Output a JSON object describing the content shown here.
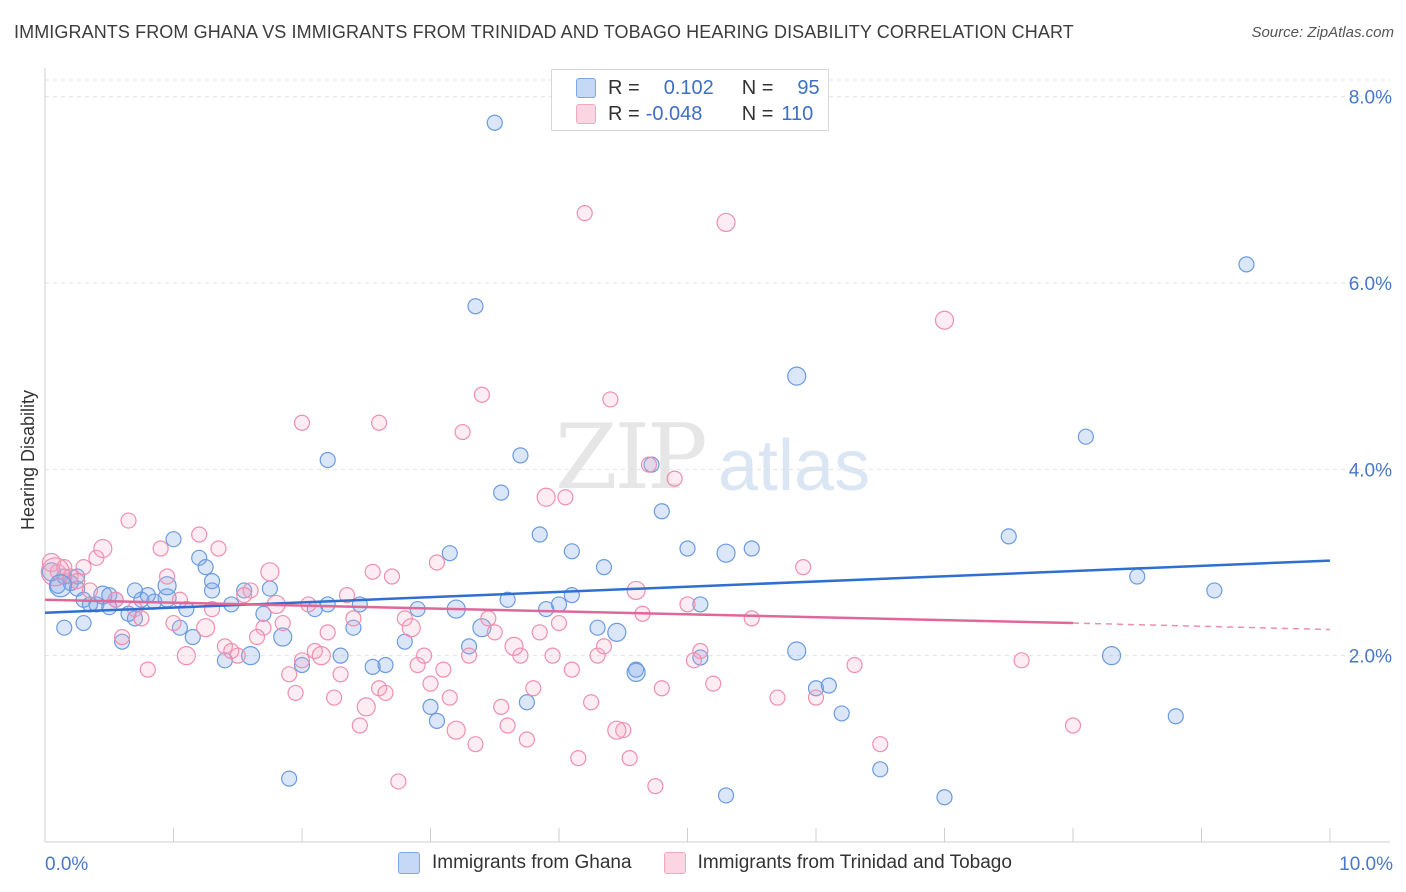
{
  "title": "IMMIGRANTS FROM GHANA VS IMMIGRANTS FROM TRINIDAD AND TOBAGO HEARING DISABILITY CORRELATION CHART",
  "source": "Source: ZipAtlas.com",
  "watermark": {
    "zip": "ZIP",
    "atlas": "atlas"
  },
  "legend": {
    "rows": [
      {
        "r_label": "R =",
        "r_value": "0.102",
        "n_label": "N =",
        "n_value": "95",
        "color": "#7da7e8"
      },
      {
        "r_label": "R =",
        "r_value": "-0.048",
        "n_label": "N =",
        "n_value": "110",
        "color": "#f4a7c0"
      }
    ]
  },
  "bottom_legend": {
    "ghana": "Immigrants from Ghana",
    "trinidad": "Immigrants from Trinidad and Tobago"
  },
  "chart_data": {
    "type": "scatter",
    "ylabel": "Hearing Disability",
    "x_tick_labels": [
      "0.0%",
      "10.0%"
    ],
    "y_tick_labels": [
      "2.0%",
      "4.0%",
      "6.0%",
      "8.0%"
    ],
    "y_ticks": [
      2,
      4,
      6,
      8
    ],
    "xlim": [
      0,
      10
    ],
    "ylim": [
      0,
      8.2
    ],
    "grid": true,
    "series": [
      {
        "name": "Immigrants from Ghana",
        "color": "#6b9be0",
        "trend": {
          "x0": 0,
          "y0": 2.46,
          "x1": 10,
          "y1": 3.02
        },
        "points": [
          [
            0.05,
            2.9
          ],
          [
            0.1,
            2.75
          ],
          [
            0.15,
            2.85
          ],
          [
            0.2,
            2.78
          ],
          [
            0.25,
            2.72
          ],
          [
            0.3,
            2.6
          ],
          [
            0.35,
            2.55
          ],
          [
            0.45,
            2.65
          ],
          [
            0.5,
            2.52
          ],
          [
            0.55,
            2.6
          ],
          [
            0.65,
            2.45
          ],
          [
            0.7,
            2.4
          ],
          [
            0.75,
            2.6
          ],
          [
            0.85,
            2.58
          ],
          [
            0.95,
            2.62
          ],
          [
            1.1,
            2.5
          ],
          [
            1.2,
            3.05
          ],
          [
            1.3,
            2.8
          ],
          [
            1.45,
            2.55
          ],
          [
            1.55,
            2.7
          ],
          [
            1.7,
            2.45
          ],
          [
            1.85,
            2.2
          ],
          [
            2.0,
            1.9
          ],
          [
            2.2,
            2.55
          ],
          [
            2.4,
            2.3
          ],
          [
            2.55,
            1.88
          ],
          [
            2.8,
            2.15
          ],
          [
            3.0,
            1.45
          ],
          [
            3.2,
            2.5
          ],
          [
            3.35,
            5.75
          ],
          [
            3.55,
            3.75
          ],
          [
            3.7,
            4.15
          ],
          [
            3.85,
            3.3
          ],
          [
            4.1,
            2.65
          ],
          [
            4.3,
            2.3
          ],
          [
            4.45,
            2.25
          ],
          [
            4.6,
            1.85
          ],
          [
            4.8,
            3.55
          ],
          [
            5.0,
            3.15
          ],
          [
            5.1,
            1.98
          ],
          [
            5.3,
            0.5
          ],
          [
            5.5,
            3.15
          ],
          [
            5.85,
            2.05
          ],
          [
            6.0,
            1.65
          ],
          [
            6.2,
            1.38
          ],
          [
            6.5,
            0.78
          ],
          [
            7.0,
            0.48
          ],
          [
            7.5,
            3.28
          ],
          [
            8.1,
            4.35
          ],
          [
            8.3,
            2.0
          ],
          [
            8.5,
            2.85
          ],
          [
            8.8,
            1.35
          ],
          [
            9.1,
            2.7
          ],
          [
            9.35,
            6.2
          ],
          [
            3.5,
            7.72
          ],
          [
            4.72,
            4.05
          ],
          [
            5.85,
            5.0
          ],
          [
            2.2,
            4.1
          ],
          [
            1.9,
            0.68
          ],
          [
            3.15,
            3.1
          ],
          [
            0.3,
            2.35
          ],
          [
            0.6,
            2.15
          ],
          [
            1.0,
            3.25
          ],
          [
            1.6,
            2.0
          ],
          [
            2.1,
            2.5
          ],
          [
            2.65,
            1.9
          ],
          [
            3.05,
            1.3
          ],
          [
            3.3,
            2.1
          ],
          [
            3.9,
            2.5
          ],
          [
            4.1,
            3.12
          ],
          [
            4.6,
            1.82
          ],
          [
            5.1,
            2.55
          ],
          [
            1.3,
            2.7
          ],
          [
            0.8,
            2.65
          ],
          [
            1.05,
            2.3
          ],
          [
            2.3,
            2.0
          ],
          [
            1.4,
            1.95
          ],
          [
            0.95,
            2.75
          ],
          [
            3.6,
            2.6
          ],
          [
            4.35,
            2.95
          ],
          [
            0.15,
            2.3
          ],
          [
            1.75,
            2.72
          ],
          [
            2.45,
            2.55
          ],
          [
            3.75,
            1.5
          ],
          [
            5.3,
            3.1
          ],
          [
            6.1,
            1.68
          ],
          [
            0.4,
            2.55
          ],
          [
            1.25,
            2.95
          ],
          [
            0.7,
            2.7
          ],
          [
            1.15,
            2.2
          ],
          [
            2.9,
            2.5
          ],
          [
            3.4,
            2.3
          ],
          [
            4.0,
            2.55
          ],
          [
            0.5,
            2.65
          ],
          [
            0.25,
            2.85
          ]
        ]
      },
      {
        "name": "Immigrants from Trinidad and Tobago",
        "color": "#ee8fb0",
        "trend": {
          "x0": 0,
          "y0": 2.6,
          "x1": 8.0,
          "y1": 2.35
        },
        "trend_dashed": {
          "x0": 8.0,
          "y0": 2.35,
          "x1": 10,
          "y1": 2.28
        },
        "points": [
          [
            0.05,
            3.0
          ],
          [
            0.1,
            2.9
          ],
          [
            0.15,
            2.95
          ],
          [
            0.2,
            2.85
          ],
          [
            0.25,
            2.8
          ],
          [
            0.3,
            2.95
          ],
          [
            0.4,
            3.05
          ],
          [
            0.45,
            3.15
          ],
          [
            0.55,
            2.6
          ],
          [
            0.6,
            2.2
          ],
          [
            0.7,
            2.5
          ],
          [
            0.8,
            1.85
          ],
          [
            0.9,
            3.15
          ],
          [
            1.0,
            2.35
          ],
          [
            1.1,
            2.0
          ],
          [
            1.2,
            3.3
          ],
          [
            1.3,
            2.5
          ],
          [
            1.4,
            2.1
          ],
          [
            1.5,
            2.0
          ],
          [
            1.6,
            2.7
          ],
          [
            1.7,
            2.3
          ],
          [
            1.8,
            2.55
          ],
          [
            1.9,
            1.8
          ],
          [
            2.0,
            1.95
          ],
          [
            2.1,
            2.05
          ],
          [
            2.2,
            2.25
          ],
          [
            2.3,
            1.8
          ],
          [
            2.4,
            2.4
          ],
          [
            2.5,
            1.45
          ],
          [
            2.6,
            1.65
          ],
          [
            2.7,
            2.85
          ],
          [
            2.8,
            2.4
          ],
          [
            2.9,
            1.9
          ],
          [
            3.0,
            1.7
          ],
          [
            3.1,
            1.85
          ],
          [
            3.2,
            1.2
          ],
          [
            3.3,
            2.0
          ],
          [
            3.4,
            4.8
          ],
          [
            3.5,
            2.25
          ],
          [
            3.6,
            1.25
          ],
          [
            3.7,
            2.0
          ],
          [
            3.8,
            1.65
          ],
          [
            3.9,
            3.7
          ],
          [
            4.0,
            2.35
          ],
          [
            4.1,
            1.85
          ],
          [
            4.2,
            6.75
          ],
          [
            4.3,
            2.0
          ],
          [
            4.4,
            4.75
          ],
          [
            4.5,
            1.2
          ],
          [
            4.6,
            2.7
          ],
          [
            4.7,
            4.05
          ],
          [
            4.8,
            1.65
          ],
          [
            4.9,
            3.9
          ],
          [
            5.0,
            2.55
          ],
          [
            5.1,
            2.05
          ],
          [
            5.2,
            1.7
          ],
          [
            5.3,
            6.65
          ],
          [
            5.5,
            2.4
          ],
          [
            5.7,
            1.55
          ],
          [
            5.9,
            2.95
          ],
          [
            6.0,
            1.55
          ],
          [
            6.3,
            1.9
          ],
          [
            6.5,
            1.05
          ],
          [
            7.0,
            5.6
          ],
          [
            7.6,
            1.95
          ],
          [
            8.0,
            1.25
          ],
          [
            2.0,
            4.5
          ],
          [
            2.6,
            4.5
          ],
          [
            3.25,
            4.4
          ],
          [
            4.05,
            3.7
          ],
          [
            1.75,
            2.9
          ],
          [
            0.65,
            3.45
          ],
          [
            1.35,
            3.15
          ],
          [
            0.35,
            2.7
          ],
          [
            0.75,
            2.4
          ],
          [
            0.95,
            2.85
          ],
          [
            1.05,
            2.6
          ],
          [
            1.25,
            2.3
          ],
          [
            1.45,
            2.05
          ],
          [
            1.55,
            2.65
          ],
          [
            1.65,
            2.2
          ],
          [
            1.85,
            2.35
          ],
          [
            1.95,
            1.6
          ],
          [
            2.05,
            2.55
          ],
          [
            2.15,
            2.0
          ],
          [
            2.25,
            1.55
          ],
          [
            2.35,
            2.65
          ],
          [
            2.45,
            1.25
          ],
          [
            2.55,
            2.9
          ],
          [
            2.65,
            1.6
          ],
          [
            2.75,
            0.65
          ],
          [
            2.85,
            2.3
          ],
          [
            2.95,
            2.0
          ],
          [
            3.05,
            3.0
          ],
          [
            3.15,
            1.55
          ],
          [
            3.35,
            1.05
          ],
          [
            3.45,
            2.4
          ],
          [
            3.55,
            1.45
          ],
          [
            3.65,
            2.1
          ],
          [
            3.75,
            1.1
          ],
          [
            3.85,
            2.25
          ],
          [
            3.95,
            2.0
          ],
          [
            4.15,
            0.9
          ],
          [
            4.25,
            1.5
          ],
          [
            4.35,
            2.1
          ],
          [
            4.45,
            1.2
          ],
          [
            4.55,
            0.9
          ],
          [
            4.65,
            2.45
          ],
          [
            4.75,
            0.6
          ],
          [
            5.05,
            1.95
          ]
        ]
      }
    ]
  }
}
